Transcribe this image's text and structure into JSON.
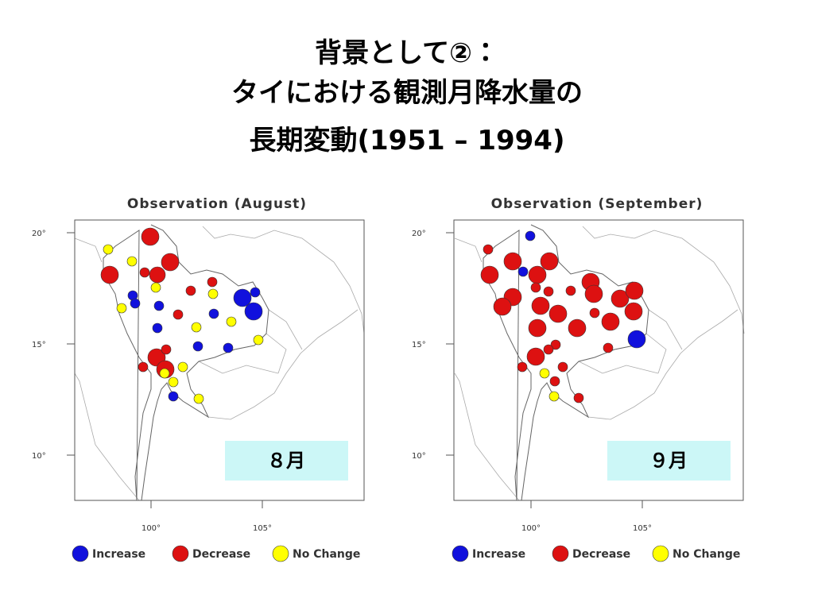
{
  "title_lines": [
    "背景として②：",
    "タイにおける観測月降水量の",
    "長期変動(1951 – 1994)"
  ],
  "maps": [
    {
      "title": "Observation (August)",
      "month": "８月",
      "y_ticks": [
        "20°",
        "15°",
        "10°"
      ],
      "x_ticks": [
        "100°",
        "105°"
      ]
    },
    {
      "title": "Observation (September)",
      "month": "９月",
      "y_ticks": [
        "20°",
        "15°",
        "10°"
      ],
      "x_ticks": [
        "100°",
        "105°"
      ]
    }
  ],
  "legend": [
    "Increase",
    "Decrease",
    "No Change"
  ]
}
